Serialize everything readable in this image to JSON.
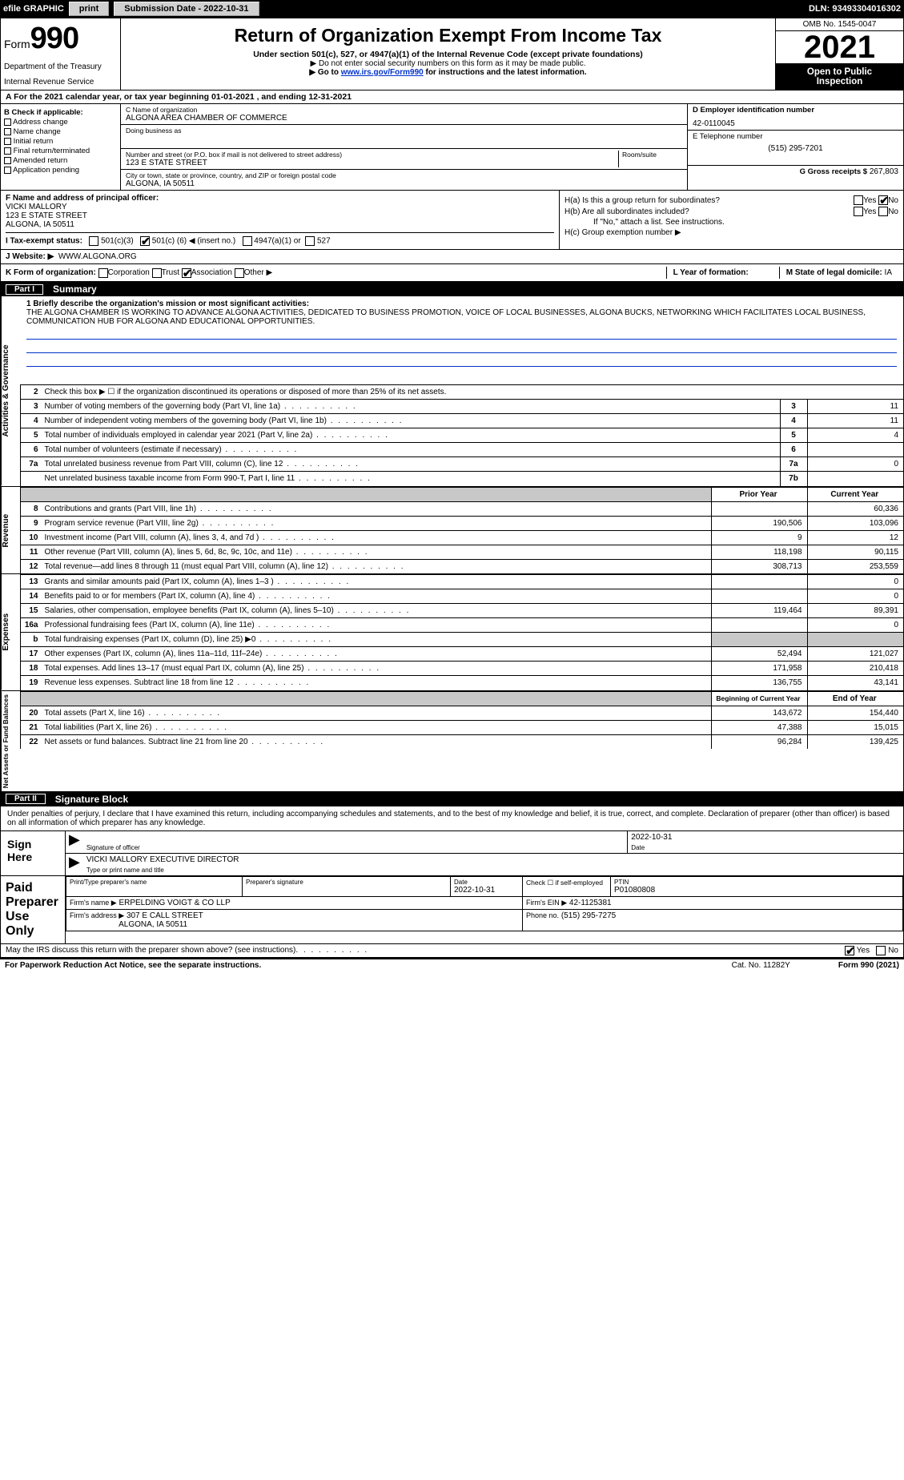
{
  "topbar": {
    "efile": "efile GRAPHIC",
    "print": "print",
    "sub_label": "Submission Date - 2022-10-31",
    "dln": "DLN: 93493304016302"
  },
  "header": {
    "form_word": "Form",
    "form_num": "990",
    "title": "Return of Organization Exempt From Income Tax",
    "subtitle": "Under section 501(c), 527, or 4947(a)(1) of the Internal Revenue Code (except private foundations)",
    "note1": "▶ Do not enter social security numbers on this form as it may be made public.",
    "note2_pre": "▶ Go to ",
    "note2_link": "www.irs.gov/Form990",
    "note2_post": " for instructions and the latest information.",
    "dept": "Department of the Treasury",
    "irs": "Internal Revenue Service",
    "omb": "OMB No. 1545-0047",
    "year": "2021",
    "openpub1": "Open to Public",
    "openpub2": "Inspection"
  },
  "row_a": "A For the 2021 calendar year, or tax year beginning 01-01-2021     , and ending 12-31-2021",
  "col_b": {
    "hdr": "B Check if applicable:",
    "items": [
      "Address change",
      "Name change",
      "Initial return",
      "Final return/terminated",
      "Amended return",
      "Application pending"
    ]
  },
  "col_c": {
    "name_lbl": "C Name of organization",
    "name_val": "ALGONA AREA CHAMBER OF COMMERCE",
    "dba_lbl": "Doing business as",
    "dba_val": "",
    "addr_lbl": "Number and street (or P.O. box if mail is not delivered to street address)",
    "room_lbl": "Room/suite",
    "addr_val": "123 E STATE STREET",
    "city_lbl": "City or town, state or province, country, and ZIP or foreign postal code",
    "city_val": "ALGONA, IA  50511"
  },
  "col_d": {
    "ein_lbl": "D Employer identification number",
    "ein_val": "42-0110045",
    "phone_lbl": "E Telephone number",
    "phone_val": "(515) 295-7201",
    "gross_lbl": "G Gross receipts $",
    "gross_val": "267,803"
  },
  "col_f": {
    "lbl": "F  Name and address of principal officer:",
    "name": "VICKI MALLORY",
    "addr1": "123 E STATE STREET",
    "addr2": "ALGONA, IA  50511"
  },
  "col_h": {
    "ha": "H(a)  Is this a group return for subordinates?",
    "hb": "H(b)  Are all subordinates included?",
    "hb_note": "If \"No,\" attach a list. See instructions.",
    "hc": "H(c)  Group exemption number ▶",
    "yes": "Yes",
    "no": "No"
  },
  "row_i": {
    "lbl": "I    Tax-exempt status:",
    "opt1": "501(c)(3)",
    "opt2_pre": "501(c) (",
    "opt2_val": "6",
    "opt2_post": ") ◀ (insert no.)",
    "opt3": "4947(a)(1) or",
    "opt4": "527"
  },
  "row_j": {
    "lbl": "J    Website: ▶",
    "val": "WWW.ALGONA.ORG"
  },
  "row_k": {
    "lbl": "K Form of organization:",
    "opts": [
      "Corporation",
      "Trust",
      "Association",
      "Other ▶"
    ],
    "checked_idx": 2,
    "l_lbl": "L Year of formation:",
    "l_val": "",
    "m_lbl": "M State of legal domicile:",
    "m_val": "IA"
  },
  "part1": {
    "num": "Part I",
    "title": "Summary"
  },
  "mission": {
    "lbl": "1   Briefly describe the organization's mission or most significant activities:",
    "text": "THE ALGONA CHAMBER IS WORKING TO ADVANCE ALGONA ACTIVITIES, DEDICATED TO BUSINESS PROMOTION, VOICE OF LOCAL BUSINESSES, ALGONA BUCKS, NETWORKING WHICH FACILITATES LOCAL BUSINESS, COMMUNICATION HUB FOR ALGONA AND EDUCATIONAL OPPORTUNITIES."
  },
  "side_labels": {
    "gov": "Activities & Governance",
    "rev": "Revenue",
    "exp": "Expenses",
    "net": "Net Assets or Fund Balances"
  },
  "gov_rows": [
    {
      "n": "2",
      "t": "Check this box ▶ ☐  if the organization discontinued its operations or disposed of more than 25% of its net assets.",
      "box": "",
      "v": ""
    },
    {
      "n": "3",
      "t": "Number of voting members of the governing body (Part VI, line 1a)",
      "box": "3",
      "v": "11"
    },
    {
      "n": "4",
      "t": "Number of independent voting members of the governing body (Part VI, line 1b)",
      "box": "4",
      "v": "11"
    },
    {
      "n": "5",
      "t": "Total number of individuals employed in calendar year 2021 (Part V, line 2a)",
      "box": "5",
      "v": "4"
    },
    {
      "n": "6",
      "t": "Total number of volunteers (estimate if necessary)",
      "box": "6",
      "v": ""
    },
    {
      "n": "7a",
      "t": "Total unrelated business revenue from Part VIII, column (C), line 12",
      "box": "7a",
      "v": "0"
    },
    {
      "n": "",
      "t": "Net unrelated business taxable income from Form 990-T, Part I, line 11",
      "box": "7b",
      "v": ""
    }
  ],
  "col_hdrs": {
    "prior": "Prior Year",
    "current": "Current Year",
    "boy": "Beginning of Current Year",
    "eoy": "End of Year"
  },
  "rev_rows": [
    {
      "n": "8",
      "t": "Contributions and grants (Part VIII, line 1h)",
      "p": "",
      "c": "60,336"
    },
    {
      "n": "9",
      "t": "Program service revenue (Part VIII, line 2g)",
      "p": "190,506",
      "c": "103,096"
    },
    {
      "n": "10",
      "t": "Investment income (Part VIII, column (A), lines 3, 4, and 7d )",
      "p": "9",
      "c": "12"
    },
    {
      "n": "11",
      "t": "Other revenue (Part VIII, column (A), lines 5, 6d, 8c, 9c, 10c, and 11e)",
      "p": "118,198",
      "c": "90,115"
    },
    {
      "n": "12",
      "t": "Total revenue—add lines 8 through 11 (must equal Part VIII, column (A), line 12)",
      "p": "308,713",
      "c": "253,559"
    }
  ],
  "exp_rows": [
    {
      "n": "13",
      "t": "Grants and similar amounts paid (Part IX, column (A), lines 1–3 )",
      "p": "",
      "c": "0"
    },
    {
      "n": "14",
      "t": "Benefits paid to or for members (Part IX, column (A), line 4)",
      "p": "",
      "c": "0"
    },
    {
      "n": "15",
      "t": "Salaries, other compensation, employee benefits (Part IX, column (A), lines 5–10)",
      "p": "119,464",
      "c": "89,391"
    },
    {
      "n": "16a",
      "t": "Professional fundraising fees (Part IX, column (A), line 11e)",
      "p": "",
      "c": "0"
    },
    {
      "n": "b",
      "t": "Total fundraising expenses (Part IX, column (D), line 25) ▶0",
      "p": "GREY",
      "c": "GREY"
    },
    {
      "n": "17",
      "t": "Other expenses (Part IX, column (A), lines 11a–11d, 11f–24e)",
      "p": "52,494",
      "c": "121,027"
    },
    {
      "n": "18",
      "t": "Total expenses. Add lines 13–17 (must equal Part IX, column (A), line 25)",
      "p": "171,958",
      "c": "210,418"
    },
    {
      "n": "19",
      "t": "Revenue less expenses. Subtract line 18 from line 12",
      "p": "136,755",
      "c": "43,141"
    }
  ],
  "net_rows": [
    {
      "n": "20",
      "t": "Total assets (Part X, line 16)",
      "p": "143,672",
      "c": "154,440"
    },
    {
      "n": "21",
      "t": "Total liabilities (Part X, line 26)",
      "p": "47,388",
      "c": "15,015"
    },
    {
      "n": "22",
      "t": "Net assets or fund balances. Subtract line 21 from line 20",
      "p": "96,284",
      "c": "139,425"
    }
  ],
  "part2": {
    "num": "Part II",
    "title": "Signature Block"
  },
  "sig": {
    "decl": "Under penalties of perjury, I declare that I have examined this return, including accompanying schedules and statements, and to the best of my knowledge and belief, it is true, correct, and complete. Declaration of preparer (other than officer) is based on all information of which preparer has any knowledge.",
    "sign_here": "Sign Here",
    "officer_sig": "Signature of officer",
    "date": "Date",
    "date_val": "2022-10-31",
    "officer_name": "VICKI MALLORY  EXECUTIVE DIRECTOR",
    "type_name": "Type or print name and title"
  },
  "paid": {
    "hdr": "Paid Preparer Use Only",
    "prep_name_lbl": "Print/Type preparer's name",
    "prep_sig_lbl": "Preparer's signature",
    "date_lbl": "Date",
    "date_val": "2022-10-31",
    "check_lbl": "Check ☐ if self-employed",
    "ptin_lbl": "PTIN",
    "ptin_val": "P01080808",
    "firm_name_lbl": "Firm's name     ▶",
    "firm_name_val": "ERPELDING VOIGT & CO LLP",
    "firm_ein_lbl": "Firm's EIN ▶",
    "firm_ein_val": "42-1125381",
    "firm_addr_lbl": "Firm's address ▶",
    "firm_addr_val1": "307 E CALL STREET",
    "firm_addr_val2": "ALGONA, IA  50511",
    "phone_lbl": "Phone no.",
    "phone_val": "(515) 295-7275"
  },
  "footer": {
    "q": "May the IRS discuss this return with the preparer shown above? (see instructions)",
    "yes": "Yes",
    "no": "No",
    "paperwork": "For Paperwork Reduction Act Notice, see the separate instructions.",
    "cat": "Cat. No. 11282Y",
    "form": "Form 990 (2021)"
  }
}
